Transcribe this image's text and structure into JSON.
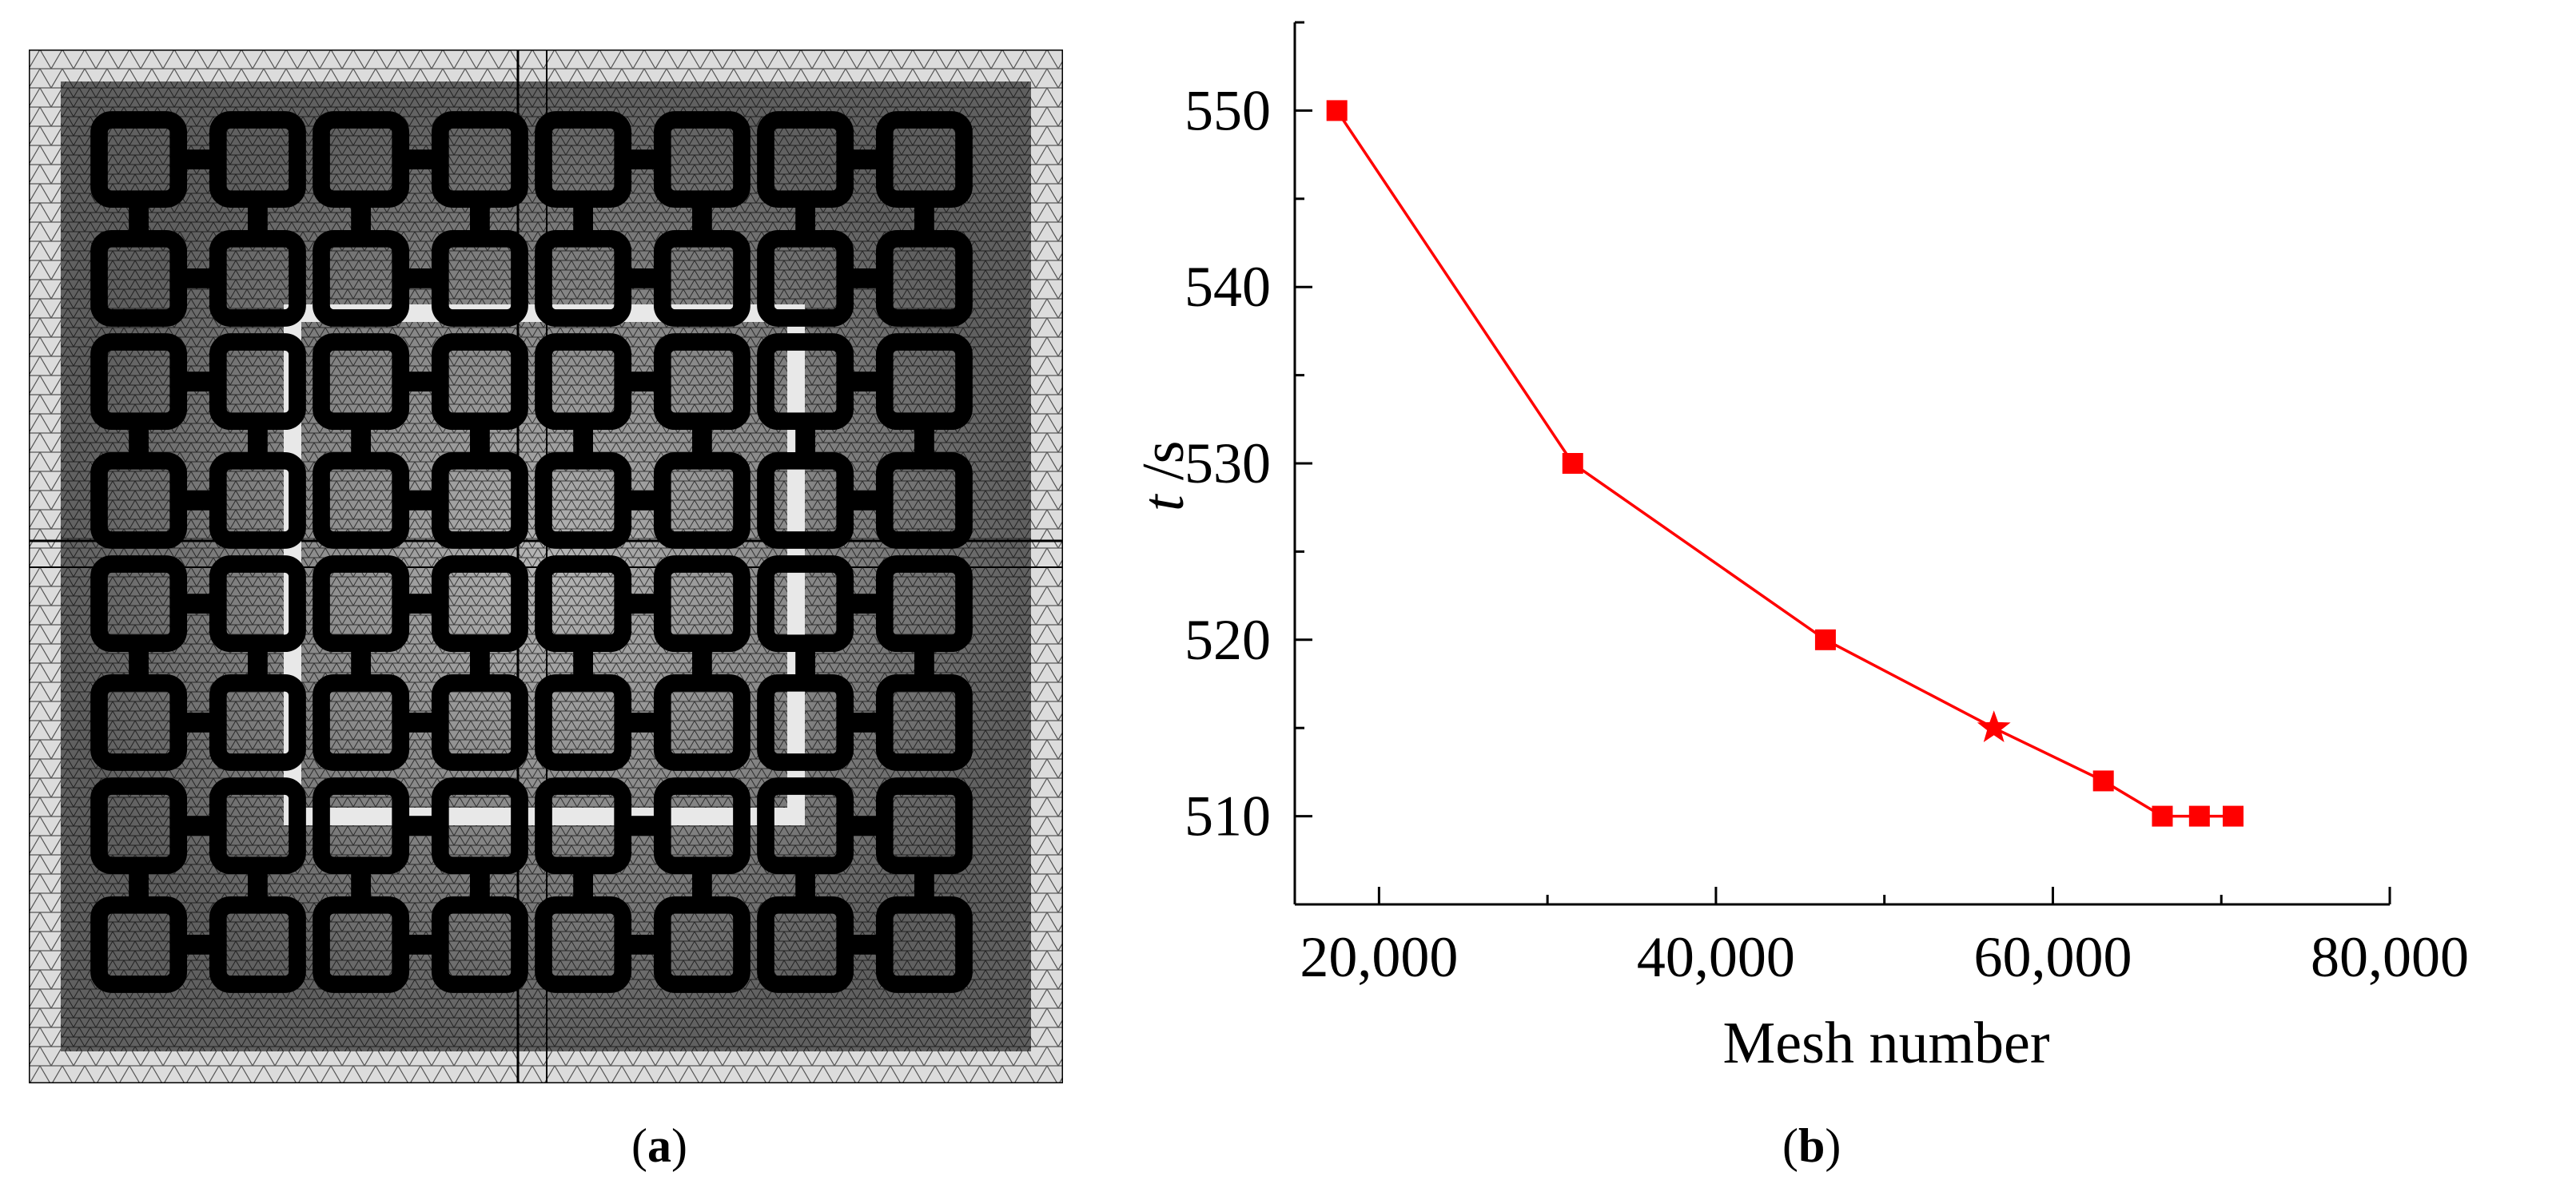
{
  "captions": {
    "a": "a",
    "b": "b"
  },
  "colors": {
    "series": "#ff0000",
    "mesh_fill": "#d0d0d0",
    "mesh_dark": "#000000",
    "mesh_line": "#555555"
  },
  "chart_data": {
    "type": "line",
    "xlabel": "Mesh number",
    "ylabel_var": "t",
    "ylabel_unit": " /s",
    "xlim": [
      15000,
      80000
    ],
    "ylim": [
      505,
      555
    ],
    "xticks": [
      20000,
      40000,
      60000,
      80000
    ],
    "xtick_labels": [
      "20,000",
      "40,000",
      "60,000",
      "80,000"
    ],
    "yticks": [
      510,
      520,
      530,
      540,
      550
    ],
    "ytick_labels": [
      "510",
      "520",
      "530",
      "540",
      "550"
    ],
    "series": [
      {
        "x": [
          17500,
          31500,
          46500,
          56500,
          63000,
          66500,
          68700,
          70700
        ],
        "y": [
          550,
          530,
          520,
          515,
          512,
          510,
          510,
          510
        ],
        "markers": [
          "square",
          "square",
          "square",
          "star",
          "square",
          "square",
          "square",
          "square"
        ]
      }
    ],
    "grid": false,
    "legend": "none"
  }
}
